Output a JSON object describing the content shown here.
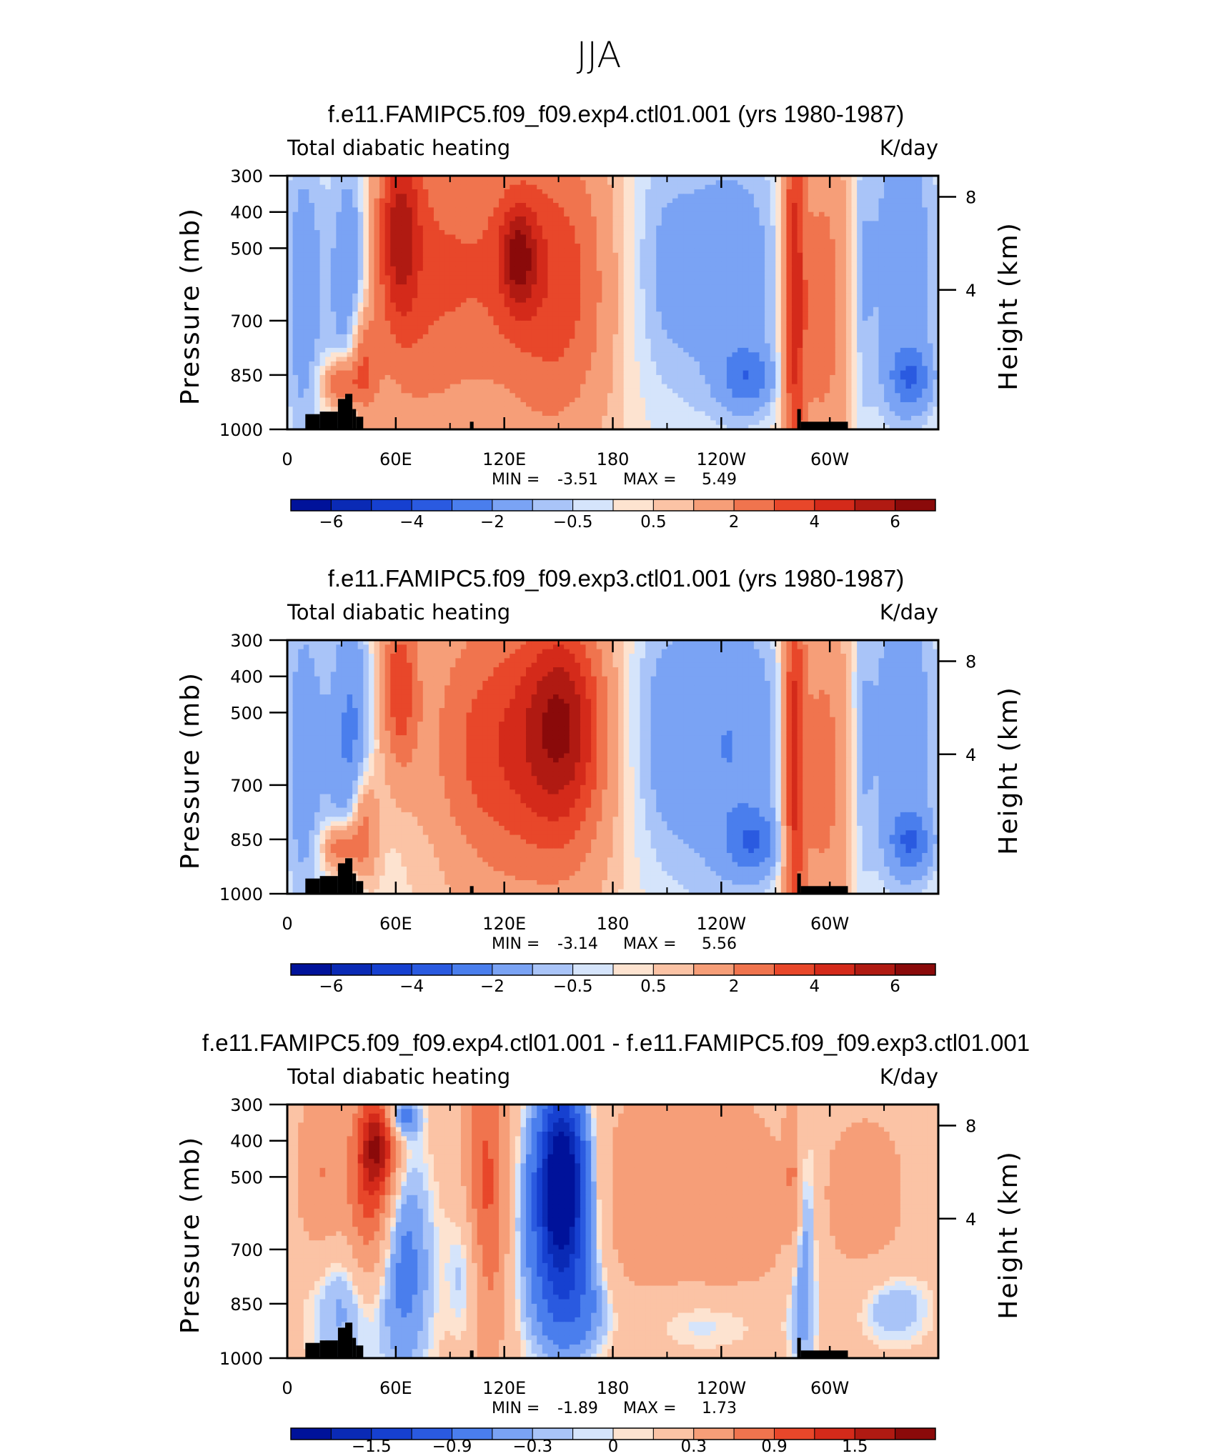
{
  "figure_title": "JJA",
  "chart_data": [
    {
      "type": "heatmap",
      "title": "f.e11.FAMIPC5.f09_f09.exp4.ctl01.001 (yrs 1980-1987)",
      "variable": "Total diabatic heating",
      "units": "K/day",
      "ylabel": "Pressure (mb)",
      "ylabel_right": "Height (km)",
      "x_ticks": [
        "0",
        "60E",
        "120E",
        "180",
        "120W",
        "60W"
      ],
      "y_ticks": [
        "300",
        "400",
        "500",
        "700",
        "850",
        "1000"
      ],
      "right_ticks": [
        "8",
        "4"
      ],
      "min_label": "MIN =",
      "min": "-3.51",
      "max_label": "MAX =",
      "max": "5.49",
      "colorbar_labels": [
        "−6",
        "−4",
        "−2",
        "−0.5",
        "0.5",
        "2",
        "4",
        "6"
      ],
      "colorbar_colors": [
        "#00129a",
        "#0a2ab5",
        "#1640d0",
        "#2a5ae0",
        "#4a7eed",
        "#7aa3f4",
        "#a9c4f8",
        "#d5e4fb",
        "#fde3d0",
        "#fbc3a5",
        "#f69e78",
        "#f0744e",
        "#e8472a",
        "#d42a1a",
        "#b01a12",
        "#8a0a0a"
      ],
      "field": {
        "bg": 0.3,
        "blobs": [
          {
            "x": 8,
            "y": 52,
            "rx": 10,
            "ry": 75,
            "v": -1.3
          },
          {
            "x": 22,
            "y": 40,
            "rx": 22,
            "ry": 55,
            "v": -1.0
          },
          {
            "x": 36,
            "y": 45,
            "rx": 10,
            "ry": 65,
            "v": -2.0
          },
          {
            "x": 30,
            "y": 82,
            "rx": 10,
            "ry": 10,
            "v": 3.5
          },
          {
            "x": 42,
            "y": 74,
            "rx": 8,
            "ry": 22,
            "v": 3.0
          },
          {
            "x": 62,
            "y": 22,
            "rx": 11,
            "ry": 35,
            "v": 3.5
          },
          {
            "x": 70,
            "y": 42,
            "rx": 32,
            "ry": 75,
            "v": 2.0
          },
          {
            "x": 120,
            "y": 37,
            "rx": 45,
            "ry": 65,
            "v": 2.3
          },
          {
            "x": 128,
            "y": 32,
            "rx": 10,
            "ry": 20,
            "v": 3.5
          },
          {
            "x": 153,
            "y": 45,
            "rx": 28,
            "ry": 60,
            "v": 2.0
          },
          {
            "x": 95,
            "y": 85,
            "rx": 40,
            "ry": 20,
            "v": -0.2
          },
          {
            "x": 205,
            "y": 35,
            "rx": 20,
            "ry": 55,
            "v": -1.0
          },
          {
            "x": 245,
            "y": 40,
            "rx": 35,
            "ry": 58,
            "v": -2.0
          },
          {
            "x": 255,
            "y": 80,
            "rx": 15,
            "ry": 12,
            "v": -2.2
          },
          {
            "x": 280,
            "y": 45,
            "rx": 6,
            "ry": 80,
            "v": 4.0
          },
          {
            "x": 295,
            "y": 50,
            "rx": 18,
            "ry": 70,
            "v": 2.5
          },
          {
            "x": 340,
            "y": 35,
            "rx": 22,
            "ry": 70,
            "v": -2.0
          },
          {
            "x": 345,
            "y": 80,
            "rx": 12,
            "ry": 12,
            "v": -2.3
          },
          {
            "x": 318,
            "y": 45,
            "rx": 6,
            "ry": 70,
            "v": -1.0
          }
        ]
      }
    },
    {
      "type": "heatmap",
      "title": "f.e11.FAMIPC5.f09_f09.exp3.ctl01.001 (yrs 1980-1987)",
      "variable": "Total diabatic heating",
      "units": "K/day",
      "ylabel": "Pressure (mb)",
      "ylabel_right": "Height (km)",
      "x_ticks": [
        "0",
        "60E",
        "120E",
        "180",
        "120W",
        "60W"
      ],
      "y_ticks": [
        "300",
        "400",
        "500",
        "700",
        "850",
        "1000"
      ],
      "right_ticks": [
        "8",
        "4"
      ],
      "min_label": "MIN =",
      "min": "-3.14",
      "max_label": "MAX =",
      "max": "5.56",
      "colorbar_labels": [
        "−6",
        "−4",
        "−2",
        "−0.5",
        "0.5",
        "2",
        "4",
        "6"
      ],
      "colorbar_colors": [
        "#00129a",
        "#0a2ab5",
        "#1640d0",
        "#2a5ae0",
        "#4a7eed",
        "#7aa3f4",
        "#a9c4f8",
        "#d5e4fb",
        "#fde3d0",
        "#fbc3a5",
        "#f69e78",
        "#f0744e",
        "#e8472a",
        "#d42a1a",
        "#b01a12",
        "#8a0a0a"
      ],
      "field": {
        "bg": 0.3,
        "blobs": [
          {
            "x": 8,
            "y": 50,
            "rx": 10,
            "ry": 75,
            "v": -1.3
          },
          {
            "x": 22,
            "y": 40,
            "rx": 22,
            "ry": 55,
            "v": -1.0
          },
          {
            "x": 36,
            "y": 45,
            "rx": 10,
            "ry": 65,
            "v": -2.0
          },
          {
            "x": 30,
            "y": 82,
            "rx": 10,
            "ry": 10,
            "v": 3.5
          },
          {
            "x": 42,
            "y": 74,
            "rx": 8,
            "ry": 22,
            "v": 3.0
          },
          {
            "x": 62,
            "y": 18,
            "rx": 10,
            "ry": 32,
            "v": 3.2
          },
          {
            "x": 100,
            "y": 40,
            "rx": 35,
            "ry": 60,
            "v": 1.5
          },
          {
            "x": 120,
            "y": 45,
            "rx": 30,
            "ry": 55,
            "v": 2.0
          },
          {
            "x": 152,
            "y": 30,
            "rx": 22,
            "ry": 40,
            "v": 3.5
          },
          {
            "x": 155,
            "y": 50,
            "rx": 28,
            "ry": 60,
            "v": 2.0
          },
          {
            "x": 88,
            "y": 85,
            "rx": 35,
            "ry": 20,
            "v": -0.2
          },
          {
            "x": 205,
            "y": 35,
            "rx": 20,
            "ry": 55,
            "v": -1.0
          },
          {
            "x": 245,
            "y": 42,
            "rx": 38,
            "ry": 62,
            "v": -2.3
          },
          {
            "x": 258,
            "y": 80,
            "rx": 15,
            "ry": 12,
            "v": -2.2
          },
          {
            "x": 280,
            "y": 45,
            "rx": 6,
            "ry": 80,
            "v": 4.0
          },
          {
            "x": 295,
            "y": 50,
            "rx": 18,
            "ry": 70,
            "v": 2.5
          },
          {
            "x": 340,
            "y": 35,
            "rx": 22,
            "ry": 70,
            "v": -2.0
          },
          {
            "x": 345,
            "y": 80,
            "rx": 12,
            "ry": 12,
            "v": -2.3
          },
          {
            "x": 318,
            "y": 45,
            "rx": 6,
            "ry": 70,
            "v": -1.0
          }
        ]
      }
    },
    {
      "type": "heatmap",
      "title": "f.e11.FAMIPC5.f09_f09.exp4.ctl01.001 - f.e11.FAMIPC5.f09_f09.exp3.ctl01.001",
      "variable": "Total diabatic heating",
      "units": "K/day",
      "ylabel": "Pressure (mb)",
      "ylabel_right": "Height (km)",
      "x_ticks": [
        "0",
        "60E",
        "120E",
        "180",
        "120W",
        "60W"
      ],
      "y_ticks": [
        "300",
        "400",
        "500",
        "700",
        "850",
        "1000"
      ],
      "right_ticks": [
        "8",
        "4"
      ],
      "min_label": "MIN =",
      "min": "-1.89",
      "max_label": "MAX =",
      "max": "1.73",
      "colorbar_labels": [
        "−1.5",
        "−0.9",
        "−0.3",
        "0",
        "0.3",
        "0.9",
        "1.5"
      ],
      "colorbar_colors": [
        "#00129a",
        "#0a2ab5",
        "#1640d0",
        "#2a5ae0",
        "#4a7eed",
        "#7aa3f4",
        "#a9c4f8",
        "#d5e4fb",
        "#fde3d0",
        "#fbc3a5",
        "#f69e78",
        "#f0744e",
        "#e8472a",
        "#d42a1a",
        "#b01a12",
        "#8a0a0a"
      ],
      "field": {
        "bg": 0.12,
        "blobs": [
          {
            "x": 20,
            "y": 30,
            "rx": 15,
            "ry": 40,
            "v": 0.5
          },
          {
            "x": 30,
            "y": 75,
            "rx": 20,
            "ry": 30,
            "v": -0.4
          },
          {
            "x": 50,
            "y": 15,
            "rx": 10,
            "ry": 20,
            "v": 1.4
          },
          {
            "x": 45,
            "y": 40,
            "rx": 12,
            "ry": 35,
            "v": 0.8
          },
          {
            "x": 62,
            "y": 5,
            "rx": 10,
            "ry": 8,
            "v": -0.6
          },
          {
            "x": 65,
            "y": 65,
            "rx": 15,
            "ry": 45,
            "v": -0.5
          },
          {
            "x": 110,
            "y": 35,
            "rx": 12,
            "ry": 60,
            "v": 0.9
          },
          {
            "x": 100,
            "y": 65,
            "rx": 10,
            "ry": 30,
            "v": -0.4
          },
          {
            "x": 152,
            "y": 30,
            "rx": 12,
            "ry": 35,
            "v": -1.7
          },
          {
            "x": 150,
            "y": 45,
            "rx": 22,
            "ry": 45,
            "v": -0.8
          },
          {
            "x": 160,
            "y": 80,
            "rx": 20,
            "ry": 20,
            "v": -0.4
          },
          {
            "x": 190,
            "y": 40,
            "rx": 40,
            "ry": 50,
            "v": 0.35
          },
          {
            "x": 245,
            "y": 40,
            "rx": 35,
            "ry": 45,
            "v": 0.4
          },
          {
            "x": 285,
            "y": 55,
            "rx": 8,
            "ry": 50,
            "v": -0.5
          },
          {
            "x": 280,
            "y": 30,
            "rx": 5,
            "ry": 30,
            "v": 0.6
          },
          {
            "x": 320,
            "y": 35,
            "rx": 25,
            "ry": 35,
            "v": 0.35
          },
          {
            "x": 335,
            "y": 80,
            "rx": 20,
            "ry": 15,
            "v": -0.3
          },
          {
            "x": 230,
            "y": 85,
            "rx": 40,
            "ry": 15,
            "v": -0.3
          }
        ]
      }
    }
  ]
}
